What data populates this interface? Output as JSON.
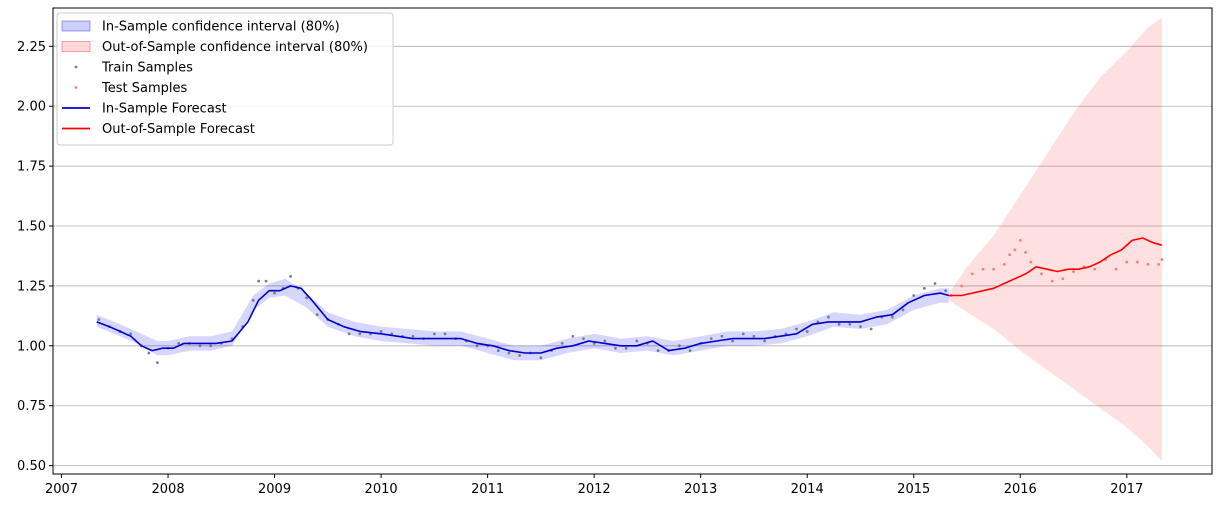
{
  "chart_data": {
    "type": "line",
    "title": "",
    "xlabel": "",
    "ylabel": "",
    "xlim": [
      2006.92,
      2017.8
    ],
    "ylim": [
      0.465,
      2.41
    ],
    "grid": "horizontal",
    "legend_placement": "top-left",
    "x_ticks": [
      {
        "value": 2007,
        "label": "2007"
      },
      {
        "value": 2008,
        "label": "2008"
      },
      {
        "value": 2009,
        "label": "2009"
      },
      {
        "value": 2010,
        "label": "2010"
      },
      {
        "value": 2011,
        "label": "2011"
      },
      {
        "value": 2012,
        "label": "2012"
      },
      {
        "value": 2013,
        "label": "2013"
      },
      {
        "value": 2014,
        "label": "2014"
      },
      {
        "value": 2015,
        "label": "2015"
      },
      {
        "value": 2016,
        "label": "2016"
      },
      {
        "value": 2017,
        "label": "2017"
      }
    ],
    "y_ticks": [
      {
        "value": 0.5,
        "label": "0.50"
      },
      {
        "value": 0.75,
        "label": "0.75"
      },
      {
        "value": 1.0,
        "label": "1.00"
      },
      {
        "value": 1.25,
        "label": "1.25"
      },
      {
        "value": 1.5,
        "label": "1.50"
      },
      {
        "value": 1.75,
        "label": "1.75"
      },
      {
        "value": 2.0,
        "label": "2.00"
      },
      {
        "value": 2.25,
        "label": "2.25"
      }
    ],
    "series": [
      {
        "name": "In-Sample confidence interval (80%)",
        "kind": "band",
        "color": "#0000ff",
        "opacity": 0.16,
        "x": [
          2007.33,
          2007.55,
          2007.75,
          2007.9,
          2008.0,
          2008.2,
          2008.4,
          2008.6,
          2008.8,
          2008.95,
          2009.1,
          2009.3,
          2009.5,
          2009.75,
          2010.0,
          2010.25,
          2010.5,
          2010.75,
          2011.0,
          2011.25,
          2011.5,
          2011.75,
          2012.0,
          2012.25,
          2012.5,
          2012.75,
          2013.0,
          2013.25,
          2013.5,
          2013.75,
          2014.0,
          2014.25,
          2014.5,
          2014.75,
          2015.0,
          2015.25,
          2015.33
        ],
        "lower": [
          1.08,
          1.04,
          1.0,
          0.96,
          0.96,
          0.98,
          0.98,
          1.0,
          1.15,
          1.2,
          1.21,
          1.16,
          1.08,
          1.04,
          1.02,
          1.01,
          1.0,
          1.0,
          0.97,
          0.94,
          0.94,
          0.97,
          0.99,
          0.97,
          0.98,
          0.96,
          0.98,
          1.0,
          1.0,
          1.01,
          1.04,
          1.08,
          1.07,
          1.09,
          1.15,
          1.18,
          1.18
        ],
        "upper": [
          1.13,
          1.09,
          1.05,
          1.02,
          1.02,
          1.04,
          1.04,
          1.06,
          1.21,
          1.26,
          1.28,
          1.22,
          1.14,
          1.1,
          1.08,
          1.07,
          1.06,
          1.06,
          1.03,
          1.0,
          1.0,
          1.03,
          1.05,
          1.03,
          1.04,
          1.02,
          1.04,
          1.06,
          1.06,
          1.07,
          1.1,
          1.14,
          1.13,
          1.15,
          1.21,
          1.24,
          1.24
        ]
      },
      {
        "name": "Out-of-Sample confidence interval (80%)",
        "kind": "band",
        "color": "#ff0000",
        "opacity": 0.12,
        "x": [
          2015.33,
          2015.5,
          2015.75,
          2016.0,
          2016.25,
          2016.5,
          2016.75,
          2017.0,
          2017.2,
          2017.33
        ],
        "lower": [
          1.19,
          1.14,
          1.07,
          0.98,
          0.9,
          0.82,
          0.74,
          0.66,
          0.58,
          0.52
        ],
        "upper": [
          1.22,
          1.33,
          1.46,
          1.63,
          1.8,
          1.97,
          2.12,
          2.23,
          2.33,
          2.37
        ]
      },
      {
        "name": "Train Samples",
        "kind": "scatter",
        "color": "#708090",
        "x": [
          2007.35,
          2007.45,
          2007.55,
          2007.65,
          2007.75,
          2007.82,
          2007.9,
          2008.0,
          2008.1,
          2008.2,
          2008.3,
          2008.4,
          2008.5,
          2008.6,
          2008.7,
          2008.8,
          2008.85,
          2008.92,
          2009.0,
          2009.08,
          2009.15,
          2009.22,
          2009.3,
          2009.4,
          2009.5,
          2009.6,
          2009.7,
          2009.8,
          2009.9,
          2010.0,
          2010.1,
          2010.2,
          2010.3,
          2010.4,
          2010.5,
          2010.6,
          2010.7,
          2010.8,
          2010.9,
          2011.0,
          2011.1,
          2011.2,
          2011.3,
          2011.4,
          2011.5,
          2011.6,
          2011.7,
          2011.8,
          2011.9,
          2012.0,
          2012.1,
          2012.2,
          2012.3,
          2012.4,
          2012.5,
          2012.6,
          2012.7,
          2012.8,
          2012.9,
          2013.0,
          2013.1,
          2013.2,
          2013.3,
          2013.4,
          2013.5,
          2013.6,
          2013.7,
          2013.8,
          2013.9,
          2014.0,
          2014.1,
          2014.2,
          2014.3,
          2014.4,
          2014.5,
          2014.6,
          2014.7,
          2014.8,
          2014.9,
          2015.0,
          2015.1,
          2015.2,
          2015.3
        ],
        "y": [
          1.11,
          1.08,
          1.06,
          1.05,
          1.0,
          0.97,
          0.93,
          0.99,
          1.01,
          1.01,
          1.0,
          1.0,
          1.01,
          1.03,
          1.08,
          1.19,
          1.27,
          1.27,
          1.22,
          1.24,
          1.29,
          1.24,
          1.2,
          1.13,
          1.11,
          1.09,
          1.05,
          1.05,
          1.05,
          1.06,
          1.05,
          1.04,
          1.04,
          1.03,
          1.05,
          1.05,
          1.03,
          1.02,
          1.0,
          1.0,
          0.98,
          0.97,
          0.96,
          0.97,
          0.95,
          0.98,
          1.01,
          1.04,
          1.03,
          1.01,
          1.02,
          0.99,
          0.99,
          1.02,
          1.01,
          0.98,
          0.98,
          1.0,
          0.98,
          1.01,
          1.03,
          1.04,
          1.02,
          1.05,
          1.04,
          1.02,
          1.04,
          1.05,
          1.07,
          1.06,
          1.1,
          1.12,
          1.09,
          1.09,
          1.08,
          1.07,
          1.12,
          1.12,
          1.15,
          1.21,
          1.24,
          1.26,
          1.23
        ]
      },
      {
        "name": "Test Samples",
        "kind": "scatter",
        "color": "#f08080",
        "x": [
          2015.35,
          2015.45,
          2015.55,
          2015.65,
          2015.75,
          2015.85,
          2015.9,
          2015.95,
          2016.0,
          2016.05,
          2016.1,
          2016.2,
          2016.3,
          2016.4,
          2016.5,
          2016.6,
          2016.7,
          2016.8,
          2016.9,
          2017.0,
          2017.1,
          2017.2,
          2017.3,
          2017.33
        ],
        "y": [
          1.21,
          1.25,
          1.3,
          1.32,
          1.32,
          1.34,
          1.38,
          1.4,
          1.44,
          1.39,
          1.35,
          1.3,
          1.27,
          1.28,
          1.31,
          1.33,
          1.32,
          1.36,
          1.32,
          1.35,
          1.35,
          1.34,
          1.34,
          1.36
        ]
      },
      {
        "name": "In-Sample Forecast",
        "kind": "line",
        "color": "#0000cc",
        "x": [
          2007.33,
          2007.45,
          2007.55,
          2007.65,
          2007.75,
          2007.85,
          2007.95,
          2008.05,
          2008.15,
          2008.3,
          2008.45,
          2008.6,
          2008.75,
          2008.85,
          2008.95,
          2009.05,
          2009.15,
          2009.25,
          2009.35,
          2009.5,
          2009.65,
          2009.8,
          2010.0,
          2010.15,
          2010.3,
          2010.45,
          2010.6,
          2010.75,
          2010.9,
          2011.05,
          2011.2,
          2011.35,
          2011.5,
          2011.65,
          2011.8,
          2011.95,
          2012.1,
          2012.25,
          2012.4,
          2012.55,
          2012.7,
          2012.85,
          2013.0,
          2013.15,
          2013.3,
          2013.45,
          2013.6,
          2013.75,
          2013.9,
          2014.05,
          2014.2,
          2014.35,
          2014.5,
          2014.65,
          2014.8,
          2014.95,
          2015.1,
          2015.25,
          2015.33
        ],
        "y": [
          1.1,
          1.08,
          1.06,
          1.04,
          1.0,
          0.98,
          0.99,
          0.99,
          1.01,
          1.01,
          1.01,
          1.02,
          1.1,
          1.19,
          1.23,
          1.23,
          1.25,
          1.24,
          1.19,
          1.11,
          1.08,
          1.06,
          1.05,
          1.04,
          1.03,
          1.03,
          1.03,
          1.03,
          1.01,
          1.0,
          0.98,
          0.97,
          0.97,
          0.99,
          1.0,
          1.02,
          1.01,
          1.0,
          1.0,
          1.02,
          0.98,
          0.99,
          1.01,
          1.02,
          1.03,
          1.03,
          1.03,
          1.04,
          1.05,
          1.09,
          1.1,
          1.1,
          1.1,
          1.12,
          1.13,
          1.18,
          1.21,
          1.22,
          1.21
        ]
      },
      {
        "name": "Out-of-Sample Forecast",
        "kind": "line",
        "color": "#ff0000",
        "x": [
          2015.33,
          2015.45,
          2015.55,
          2015.65,
          2015.75,
          2015.85,
          2015.95,
          2016.05,
          2016.15,
          2016.25,
          2016.35,
          2016.45,
          2016.55,
          2016.65,
          2016.75,
          2016.85,
          2016.95,
          2017.05,
          2017.15,
          2017.25,
          2017.33
        ],
        "y": [
          1.21,
          1.21,
          1.22,
          1.23,
          1.24,
          1.26,
          1.28,
          1.3,
          1.33,
          1.32,
          1.31,
          1.32,
          1.32,
          1.33,
          1.35,
          1.38,
          1.4,
          1.44,
          1.45,
          1.43,
          1.42
        ]
      }
    ]
  }
}
